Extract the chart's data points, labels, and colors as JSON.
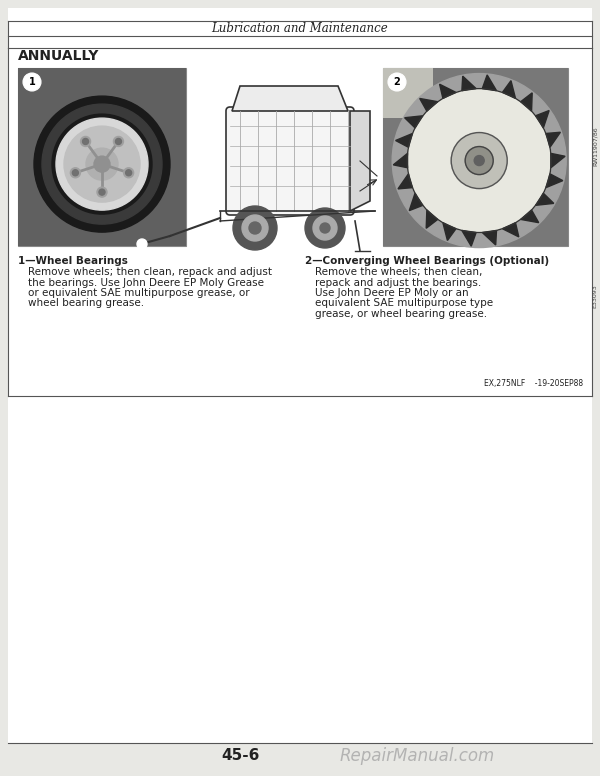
{
  "page_bg": "#e8e8e4",
  "content_bg": "#ffffff",
  "header_text": "Lubrication and Maintenance",
  "section_title": "ANNUALLY",
  "item1_title": "1—Wheel Bearings",
  "item1_body_line1": "Remove wheels; then clean, repack and adjust",
  "item1_body_line2": "the bearings. Use John Deere EP Moly Grease",
  "item1_body_line3": "or equivalent SAE multipurpose grease, or",
  "item1_body_line4": "wheel bearing grease.",
  "item2_title": "2—Converging Wheel Bearings (Optional)",
  "item2_body_line1": "Remove the wheels; then clean,",
  "item2_body_line2": "repack and adjust the bearings.",
  "item2_body_line3": "Use John Deere EP Moly or an",
  "item2_body_line4": "equivalent SAE multipurpose type",
  "item2_body_line5": "grease, or wheel bearing grease.",
  "footer_page": "45-6",
  "footer_watermark": "RepairManual.com",
  "part_code": "EX,275NLF    -19-20SEP88",
  "side_text1": "RW11907/86",
  "side_text2": "E33093",
  "border_color": "#555555",
  "text_color": "#222222",
  "header_font_size": 8.5,
  "body_font_size": 7.5,
  "section_font_size": 10
}
